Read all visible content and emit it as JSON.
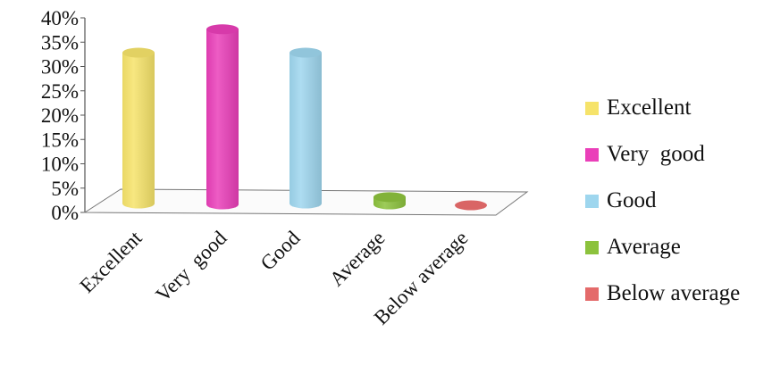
{
  "chart_data": {
    "type": "bar",
    "style": "3d-cylinder",
    "categories": [
      "Excellent",
      "Very  good",
      "Good",
      "Average",
      "Below average"
    ],
    "values": [
      31,
      36,
      31,
      1.5,
      0
    ],
    "colors": [
      "#f6e36a",
      "#ea3fb9",
      "#9ed6ee",
      "#8cc23d",
      "#e46a6a"
    ],
    "yticks": [
      "0%",
      "5%",
      "10%",
      "15%",
      "20%",
      "25%",
      "30%",
      "35%",
      "40%"
    ],
    "ylim": [
      0,
      40
    ],
    "legend_position": "right",
    "grid": false
  },
  "legend": {
    "items": [
      {
        "label": "Excellent",
        "color": "#f6e36a"
      },
      {
        "label": "Very  good",
        "color": "#ea3fb9"
      },
      {
        "label": "Good",
        "color": "#9ed6ee"
      },
      {
        "label": "Average",
        "color": "#8cc23d"
      },
      {
        "label": "Below average",
        "color": "#e46a6a"
      }
    ]
  }
}
